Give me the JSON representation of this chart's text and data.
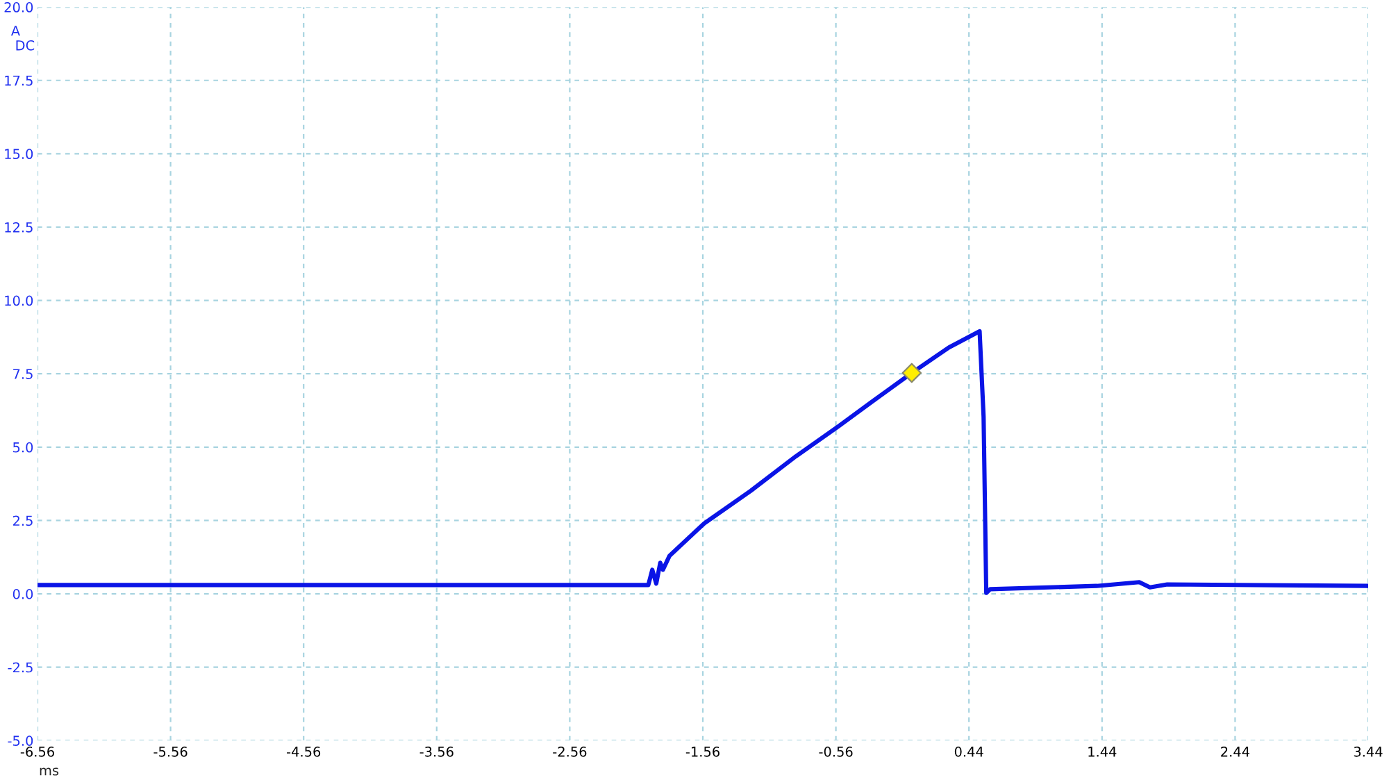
{
  "chart_data": {
    "type": "line",
    "xlabel": "ms",
    "ylabel": "A",
    "annotations": [
      "DC"
    ],
    "xlim": [
      -6.56,
      3.44
    ],
    "xticks": [
      -6.56,
      -5.56,
      -4.56,
      -3.56,
      -2.56,
      -1.56,
      -0.56,
      0.44,
      1.44,
      2.44,
      3.44
    ],
    "ylim": [
      -5,
      20
    ],
    "yticks": [
      {
        "value": -5,
        "label": "-5.0"
      },
      {
        "value": -2.5,
        "label": "-2.5"
      },
      {
        "value": 0,
        "label": "0.0"
      },
      {
        "value": 2.5,
        "label": "2.5"
      },
      {
        "value": 5,
        "label": "5.0"
      },
      {
        "value": 7.5,
        "label": "7.5"
      },
      {
        "value": 10,
        "label": "10.0"
      },
      {
        "value": 12.5,
        "label": "12.5"
      },
      {
        "value": 15,
        "label": "15.0"
      },
      {
        "value": 17.5,
        "label": "17.5"
      },
      {
        "value": 20,
        "label": "20.0"
      }
    ],
    "grid": true,
    "legend": false,
    "line_style": "solid",
    "series": [
      {
        "color": "#0a14e6",
        "x": [
          -6.56,
          -1.97,
          -1.94,
          -1.91,
          -1.88,
          -1.86,
          -1.81,
          -1.55,
          -1.2,
          -0.86,
          -0.54,
          -0.3,
          0.01,
          0.29,
          0.52,
          0.55,
          0.57,
          0.6,
          1.4,
          1.72,
          1.8,
          1.93,
          3.44
        ],
        "values": [
          0.3,
          0.3,
          0.82,
          0.35,
          1.06,
          0.82,
          1.3,
          2.4,
          3.51,
          4.69,
          5.71,
          6.51,
          7.53,
          8.4,
          8.95,
          6.03,
          0.03,
          0.16,
          0.27,
          0.4,
          0.22,
          0.32,
          0.27
        ]
      },
      {
        "type": "scatter",
        "marker": "diamond",
        "color": "#ffee00",
        "x": [
          0.01
        ],
        "values": [
          7.53
        ]
      }
    ]
  }
}
